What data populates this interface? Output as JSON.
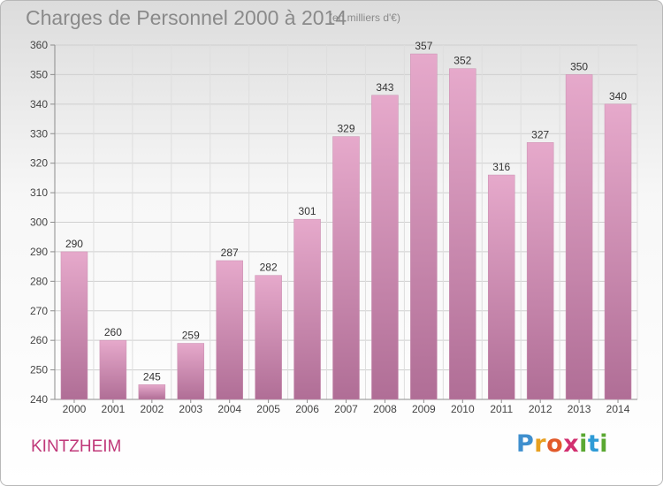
{
  "header": {
    "title": "Charges de Personnel 2000 à 2014",
    "subtitle": "(en milliers d'€)"
  },
  "footer": {
    "commune": "KINTZHEIM",
    "brand": "Proxiti"
  },
  "colors": {
    "bar_top": "#e6a9cb",
    "bar_bottom": "#b06e96",
    "commune_text": "#c0397a"
  },
  "chart_data": {
    "type": "bar",
    "title": "Charges de Personnel 2000 à 2014",
    "subtitle": "(en milliers d'€)",
    "xlabel": "",
    "ylabel": "",
    "categories": [
      "2000",
      "2001",
      "2002",
      "2003",
      "2004",
      "2005",
      "2006",
      "2007",
      "2008",
      "2009",
      "2010",
      "2011",
      "2012",
      "2013",
      "2014"
    ],
    "values": [
      290,
      260,
      245,
      259,
      287,
      282,
      301,
      329,
      343,
      357,
      352,
      316,
      327,
      350,
      340
    ],
    "ylim": [
      240,
      360
    ],
    "yticks": [
      240,
      250,
      260,
      270,
      280,
      290,
      300,
      310,
      320,
      330,
      340,
      350,
      360
    ],
    "grid": true,
    "data_labels": true
  }
}
